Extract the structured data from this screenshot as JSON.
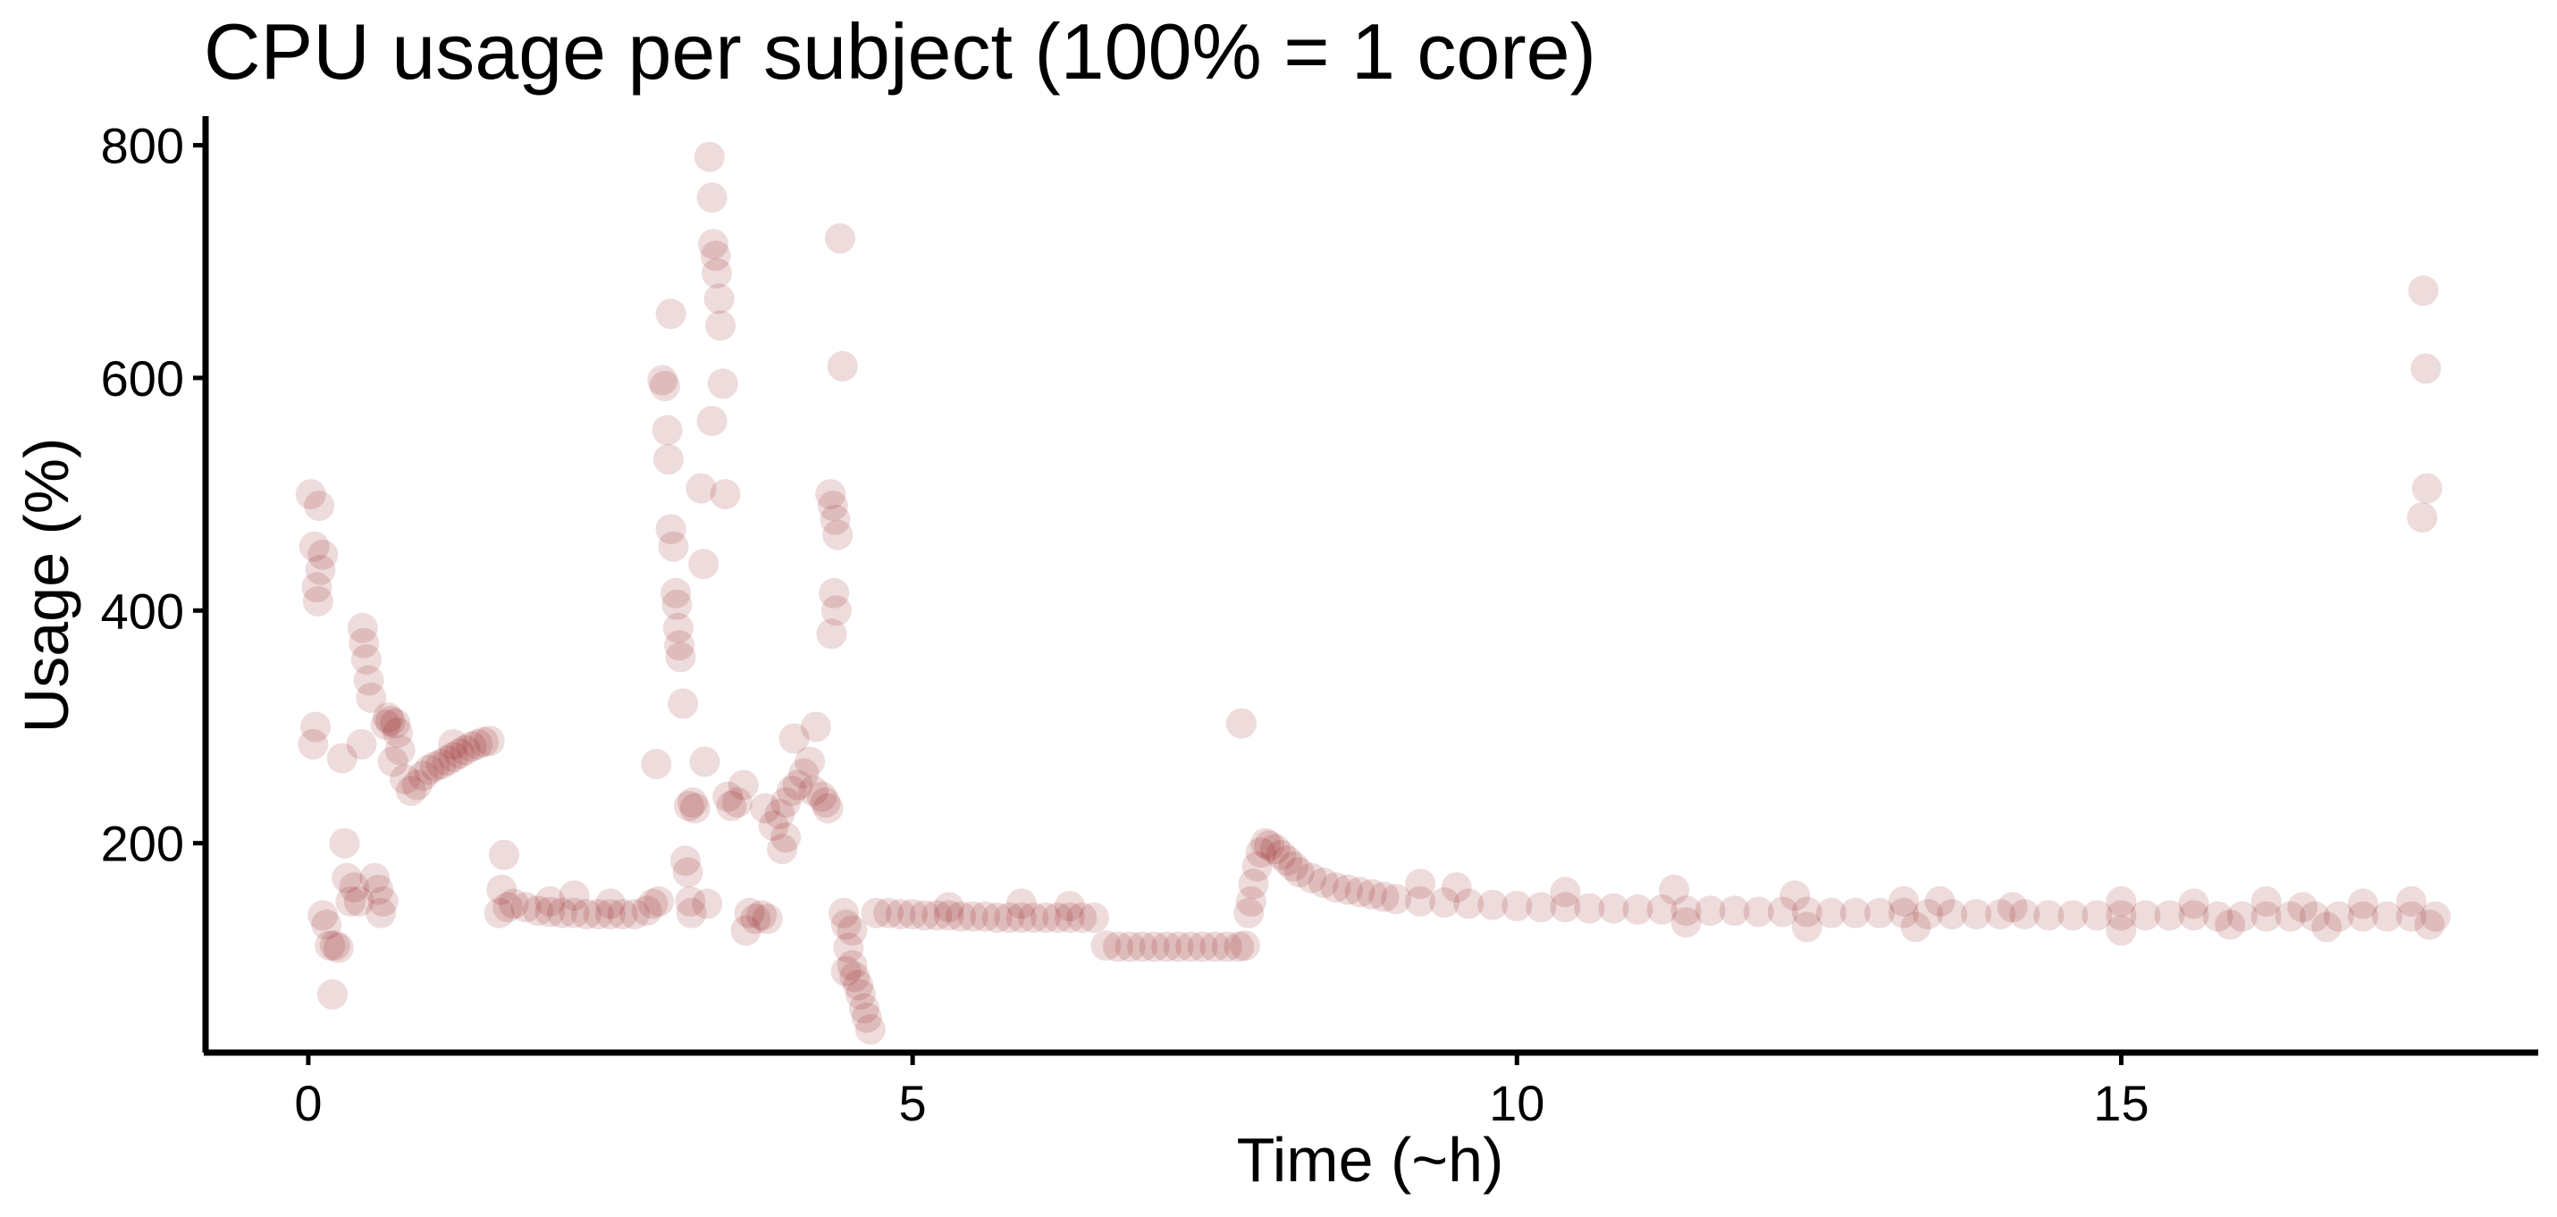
{
  "chart_data": {
    "type": "scatter",
    "title": "CPU usage per subject (100% = 1 core)",
    "xlabel": "Time (~h)",
    "ylabel": "Usage (%)",
    "xlim": [
      -0.85,
      18.45
    ],
    "ylim": [
      20,
      825
    ],
    "xticks": [
      0,
      5,
      10,
      15
    ],
    "yticks": [
      200,
      400,
      600,
      800
    ],
    "grid": false,
    "point_color": "#8e0b0b",
    "point_opacity": 0.15,
    "series": [
      {
        "points": [
          [
            0.02,
            500
          ],
          [
            0.05,
            455
          ],
          [
            0.07,
            420
          ],
          [
            0.08,
            408
          ],
          [
            0.06,
            300
          ],
          [
            0.04,
            285
          ],
          [
            0.09,
            490
          ],
          [
            0.12,
            448
          ],
          [
            0.1,
            435
          ],
          [
            0.12,
            138
          ],
          [
            0.15,
            130
          ],
          [
            0.18,
            112
          ],
          [
            0.22,
            112
          ],
          [
            0.25,
            110
          ],
          [
            0.2,
            70
          ],
          [
            0.28,
            273
          ],
          [
            0.3,
            200
          ],
          [
            0.32,
            170
          ],
          [
            0.35,
            150
          ],
          [
            0.38,
            162
          ],
          [
            0.42,
            150
          ],
          [
            0.45,
            385
          ],
          [
            0.46,
            372
          ],
          [
            0.48,
            358
          ],
          [
            0.5,
            340
          ],
          [
            0.44,
            285
          ],
          [
            0.52,
            325
          ],
          [
            0.55,
            170
          ],
          [
            0.58,
            160
          ],
          [
            0.6,
            140
          ],
          [
            0.62,
            150
          ],
          [
            0.64,
            302
          ],
          [
            0.66,
            308
          ],
          [
            0.68,
            305
          ],
          [
            0.72,
            303
          ],
          [
            0.74,
            295
          ],
          [
            0.76,
            280
          ],
          [
            0.7,
            270
          ],
          [
            0.8,
            255
          ],
          [
            0.85,
            245
          ],
          [
            0.9,
            250
          ],
          [
            0.95,
            258
          ],
          [
            1.0,
            263
          ],
          [
            1.05,
            266
          ],
          [
            1.1,
            268
          ],
          [
            1.15,
            271
          ],
          [
            1.2,
            274
          ],
          [
            1.25,
            277
          ],
          [
            1.3,
            280
          ],
          [
            1.35,
            283
          ],
          [
            1.4,
            285
          ],
          [
            1.45,
            287
          ],
          [
            1.5,
            288
          ],
          [
            1.2,
            285
          ],
          [
            1.6,
            160
          ],
          [
            1.62,
            190
          ],
          [
            1.65,
            145
          ],
          [
            1.58,
            140
          ],
          [
            1.7,
            148
          ],
          [
            1.8,
            145
          ],
          [
            1.9,
            142
          ],
          [
            2.0,
            141
          ],
          [
            2.1,
            140
          ],
          [
            2.2,
            140
          ],
          [
            2.3,
            139
          ],
          [
            2.4,
            139
          ],
          [
            2.5,
            139
          ],
          [
            2.6,
            139
          ],
          [
            2.7,
            139
          ],
          [
            2.2,
            155
          ],
          [
            2.0,
            150
          ],
          [
            2.5,
            148
          ],
          [
            2.8,
            142
          ],
          [
            2.85,
            148
          ],
          [
            2.9,
            150
          ],
          [
            2.88,
            268
          ],
          [
            2.93,
            598
          ],
          [
            2.95,
            593
          ],
          [
            2.97,
            555
          ],
          [
            2.98,
            530
          ],
          [
            3.0,
            470
          ],
          [
            3.02,
            455
          ],
          [
            3.04,
            415
          ],
          [
            3.05,
            405
          ],
          [
            3.06,
            385
          ],
          [
            3.07,
            370
          ],
          [
            3.08,
            360
          ],
          [
            3.1,
            320
          ],
          [
            3.12,
            185
          ],
          [
            3.14,
            175
          ],
          [
            3.16,
            150
          ],
          [
            3.17,
            140
          ],
          [
            3.0,
            655
          ],
          [
            3.15,
            232
          ],
          [
            3.18,
            235
          ],
          [
            3.2,
            230
          ],
          [
            3.25,
            505
          ],
          [
            3.27,
            440
          ],
          [
            3.28,
            270
          ],
          [
            3.3,
            148
          ],
          [
            3.32,
            790
          ],
          [
            3.34,
            755
          ],
          [
            3.35,
            715
          ],
          [
            3.37,
            705
          ],
          [
            3.38,
            690
          ],
          [
            3.4,
            668
          ],
          [
            3.41,
            645
          ],
          [
            3.43,
            595
          ],
          [
            3.34,
            563
          ],
          [
            3.45,
            500
          ],
          [
            3.47,
            240
          ],
          [
            3.5,
            232
          ],
          [
            3.55,
            235
          ],
          [
            3.6,
            250
          ],
          [
            3.62,
            125
          ],
          [
            3.65,
            140
          ],
          [
            3.7,
            135
          ],
          [
            3.75,
            138
          ],
          [
            3.8,
            135
          ],
          [
            3.78,
            230
          ],
          [
            3.85,
            215
          ],
          [
            3.9,
            225
          ],
          [
            3.95,
            235
          ],
          [
            4.0,
            245
          ],
          [
            4.05,
            250
          ],
          [
            4.1,
            260
          ],
          [
            4.15,
            270
          ],
          [
            4.2,
            300
          ],
          [
            4.02,
            290
          ],
          [
            3.95,
            205
          ],
          [
            3.92,
            195
          ],
          [
            4.18,
            245
          ],
          [
            4.25,
            240
          ],
          [
            4.28,
            235
          ],
          [
            4.3,
            230
          ],
          [
            4.32,
            500
          ],
          [
            4.34,
            490
          ],
          [
            4.36,
            478
          ],
          [
            4.38,
            465
          ],
          [
            4.35,
            415
          ],
          [
            4.37,
            400
          ],
          [
            4.33,
            380
          ],
          [
            4.4,
            720
          ],
          [
            4.42,
            610
          ],
          [
            4.43,
            140
          ],
          [
            4.45,
            130
          ],
          [
            4.47,
            110
          ],
          [
            4.5,
            95
          ],
          [
            4.52,
            85
          ],
          [
            4.55,
            78
          ],
          [
            4.57,
            70
          ],
          [
            4.6,
            58
          ],
          [
            4.62,
            50
          ],
          [
            4.65,
            40
          ],
          [
            4.5,
            125
          ],
          [
            4.45,
            90
          ],
          [
            4.7,
            140
          ],
          [
            4.8,
            140
          ],
          [
            4.9,
            139
          ],
          [
            5.0,
            139
          ],
          [
            5.1,
            138
          ],
          [
            5.2,
            138
          ],
          [
            5.3,
            138
          ],
          [
            5.4,
            137
          ],
          [
            5.5,
            137
          ],
          [
            5.6,
            137
          ],
          [
            5.7,
            136
          ],
          [
            5.8,
            136
          ],
          [
            5.9,
            136
          ],
          [
            6.0,
            136
          ],
          [
            6.1,
            136
          ],
          [
            6.2,
            136
          ],
          [
            6.3,
            136
          ],
          [
            6.4,
            136
          ],
          [
            6.5,
            136
          ],
          [
            5.3,
            145
          ],
          [
            5.9,
            148
          ],
          [
            6.3,
            146
          ],
          [
            6.6,
            112
          ],
          [
            6.7,
            111
          ],
          [
            6.8,
            111
          ],
          [
            6.9,
            111
          ],
          [
            7.0,
            111
          ],
          [
            7.1,
            111
          ],
          [
            7.2,
            111
          ],
          [
            7.3,
            111
          ],
          [
            7.4,
            111
          ],
          [
            7.5,
            111
          ],
          [
            7.6,
            111
          ],
          [
            7.7,
            111
          ],
          [
            7.75,
            112
          ],
          [
            7.72,
            303
          ],
          [
            7.78,
            140
          ],
          [
            7.8,
            150
          ],
          [
            7.82,
            165
          ],
          [
            7.85,
            180
          ],
          [
            7.88,
            192
          ],
          [
            7.92,
            200
          ],
          [
            7.95,
            198
          ],
          [
            8.0,
            195
          ],
          [
            8.05,
            190
          ],
          [
            8.1,
            185
          ],
          [
            8.15,
            180
          ],
          [
            8.2,
            175
          ],
          [
            8.3,
            170
          ],
          [
            8.4,
            166
          ],
          [
            8.5,
            162
          ],
          [
            8.6,
            160
          ],
          [
            8.7,
            158
          ],
          [
            8.8,
            156
          ],
          [
            8.9,
            154
          ],
          [
            9.0,
            152
          ],
          [
            9.2,
            150
          ],
          [
            9.4,
            149
          ],
          [
            9.6,
            148
          ],
          [
            9.8,
            147
          ],
          [
            10.0,
            146
          ],
          [
            10.2,
            145
          ],
          [
            10.4,
            145
          ],
          [
            10.6,
            144
          ],
          [
            10.8,
            144
          ],
          [
            11.0,
            143
          ],
          [
            11.2,
            143
          ],
          [
            11.4,
            142
          ],
          [
            11.6,
            142
          ],
          [
            11.8,
            142
          ],
          [
            12.0,
            141
          ],
          [
            12.2,
            141
          ],
          [
            12.4,
            141
          ],
          [
            12.6,
            140
          ],
          [
            12.8,
            140
          ],
          [
            13.0,
            140
          ],
          [
            13.2,
            140
          ],
          [
            13.4,
            139
          ],
          [
            13.6,
            139
          ],
          [
            13.8,
            139
          ],
          [
            14.0,
            139
          ],
          [
            14.2,
            139
          ],
          [
            14.4,
            138
          ],
          [
            14.6,
            138
          ],
          [
            14.8,
            138
          ],
          [
            15.0,
            138
          ],
          [
            15.2,
            138
          ],
          [
            15.4,
            138
          ],
          [
            15.6,
            138
          ],
          [
            15.8,
            137
          ],
          [
            16.0,
            137
          ],
          [
            16.2,
            137
          ],
          [
            16.4,
            137
          ],
          [
            16.6,
            137
          ],
          [
            16.8,
            137
          ],
          [
            17.0,
            137
          ],
          [
            17.2,
            137
          ],
          [
            17.4,
            137
          ],
          [
            17.6,
            137
          ],
          [
            9.2,
            165
          ],
          [
            9.5,
            162
          ],
          [
            10.4,
            158
          ],
          [
            11.3,
            160
          ],
          [
            11.4,
            132
          ],
          [
            12.3,
            155
          ],
          [
            12.4,
            128
          ],
          [
            13.2,
            150
          ],
          [
            13.3,
            128
          ],
          [
            13.5,
            150
          ],
          [
            14.1,
            145
          ],
          [
            15.0,
            150
          ],
          [
            15.0,
            125
          ],
          [
            15.6,
            148
          ],
          [
            15.9,
            130
          ],
          [
            16.2,
            150
          ],
          [
            16.5,
            145
          ],
          [
            16.7,
            128
          ],
          [
            17.0,
            148
          ],
          [
            17.4,
            150
          ],
          [
            17.55,
            130
          ],
          [
            17.5,
            675
          ],
          [
            17.52,
            608
          ],
          [
            17.53,
            505
          ],
          [
            17.49,
            480
          ]
        ]
      }
    ]
  }
}
